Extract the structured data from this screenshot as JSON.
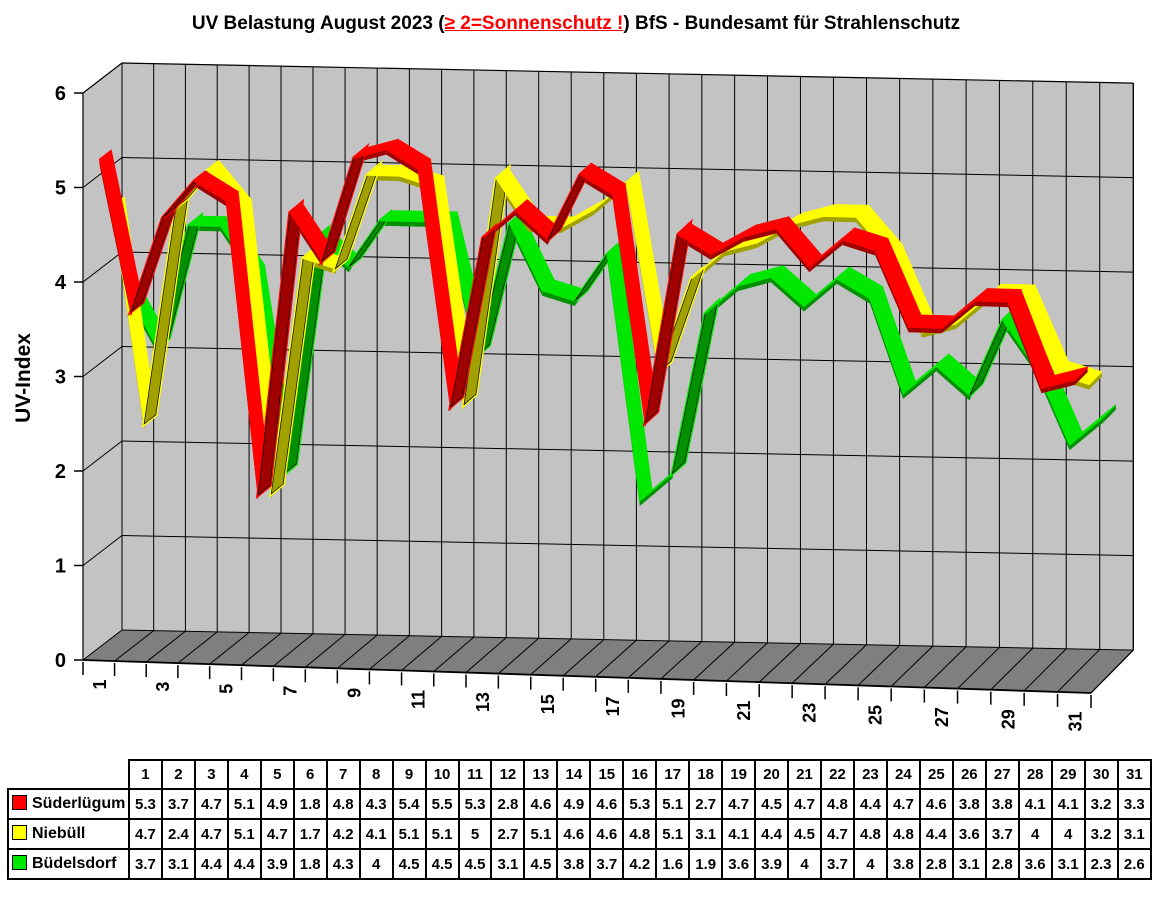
{
  "title": {
    "part1": "UV Belastung August 2023 (",
    "warning": "≥ 2=Sonnenschutz !",
    "part2": ") BfS - Bundesamt für Strahlenschutz"
  },
  "y_axis": {
    "label": "UV-Index",
    "ticks": [
      0,
      1,
      2,
      3,
      4,
      5,
      6
    ]
  },
  "x_axis": {
    "labeled_days": [
      1,
      3,
      5,
      7,
      9,
      11,
      13,
      15,
      17,
      19,
      21,
      23,
      25,
      27,
      29,
      31
    ]
  },
  "chart_data": {
    "type": "line",
    "style": "3d-ribbon",
    "title": "UV Belastung August 2023 (≥ 2=Sonnenschutz !) BfS - Bundesamt für Strahlenschutz",
    "xlabel": "",
    "ylabel": "UV-Index",
    "ylim": [
      0,
      6
    ],
    "grid": true,
    "legend_position": "table-left",
    "categories": [
      1,
      2,
      3,
      4,
      5,
      6,
      7,
      8,
      9,
      10,
      11,
      12,
      13,
      14,
      15,
      16,
      17,
      18,
      19,
      20,
      21,
      22,
      23,
      24,
      25,
      26,
      27,
      28,
      29,
      30,
      31
    ],
    "series": [
      {
        "name": "Süderlügum",
        "color": "#ff0000",
        "dark_color": "#a00000",
        "values": [
          5.3,
          3.7,
          4.7,
          5.1,
          4.9,
          1.8,
          4.8,
          4.3,
          5.4,
          5.5,
          5.3,
          2.8,
          4.6,
          4.9,
          4.6,
          5.3,
          5.1,
          2.7,
          4.7,
          4.5,
          4.7,
          4.8,
          4.4,
          4.7,
          4.6,
          3.8,
          3.8,
          4.1,
          4.1,
          3.2,
          3.3
        ]
      },
      {
        "name": "Niebüll",
        "color": "#ffff00",
        "dark_color": "#a0a000",
        "values": [
          4.7,
          2.4,
          4.7,
          5.1,
          4.7,
          1.7,
          4.2,
          4.1,
          5.1,
          5.1,
          5,
          2.7,
          5.1,
          4.6,
          4.6,
          4.8,
          5.1,
          3.1,
          4.1,
          4.4,
          4.5,
          4.7,
          4.8,
          4.8,
          4.4,
          3.6,
          3.7,
          4,
          4,
          3.2,
          3.1
        ]
      },
      {
        "name": "Büdelsdorf",
        "color": "#00e800",
        "dark_color": "#009000",
        "values": [
          3.7,
          3.1,
          4.4,
          4.4,
          3.9,
          1.8,
          4.3,
          4,
          4.5,
          4.5,
          4.5,
          3.1,
          4.5,
          3.8,
          3.7,
          4.2,
          1.6,
          1.9,
          3.6,
          3.9,
          4,
          3.7,
          4,
          3.8,
          2.8,
          3.1,
          2.8,
          3.6,
          3.1,
          2.3,
          2.6
        ]
      }
    ]
  },
  "colors": {
    "background": "#ffffff",
    "wall": "#c3c3c3",
    "floor": "#7f7f7f",
    "gridline": "#000000",
    "axis_text": "#000000",
    "title_warning": "#ff0000"
  }
}
